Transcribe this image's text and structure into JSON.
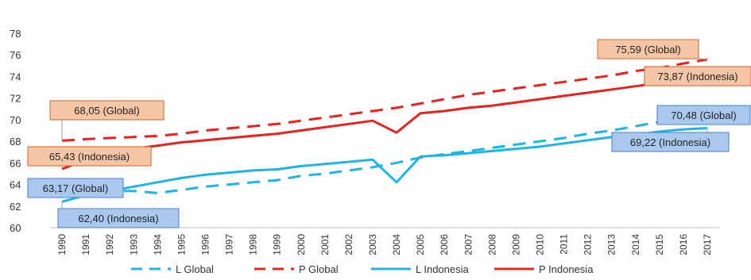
{
  "chart_data": {
    "type": "line",
    "title": "",
    "xlabel": "",
    "ylabel": "",
    "x": [
      1990,
      1991,
      1992,
      1993,
      1994,
      1995,
      1996,
      1997,
      1998,
      1999,
      2000,
      2001,
      2002,
      2003,
      2004,
      2005,
      2006,
      2007,
      2008,
      2009,
      2010,
      2011,
      2012,
      2013,
      2014,
      2015,
      2016,
      2017
    ],
    "ylim": [
      60,
      78
    ],
    "yticks": [
      60,
      62,
      64,
      66,
      68,
      70,
      72,
      74,
      76,
      78
    ],
    "grid": false,
    "legend_position": "bottom",
    "series": [
      {
        "name": "L Global",
        "color": "#1fb4e6",
        "dash": "dashed",
        "values": [
          63.17,
          63.3,
          63.4,
          63.4,
          63.2,
          63.5,
          63.8,
          64.0,
          64.2,
          64.4,
          64.8,
          65.0,
          65.3,
          65.6,
          66.0,
          66.5,
          66.8,
          67.1,
          67.4,
          67.7,
          68.0,
          68.3,
          68.7,
          69.0,
          69.4,
          69.8,
          70.1,
          70.48
        ]
      },
      {
        "name": "P Global",
        "color": "#e52421",
        "dash": "dashed",
        "values": [
          68.05,
          68.2,
          68.3,
          68.4,
          68.5,
          68.7,
          69.0,
          69.2,
          69.4,
          69.6,
          69.9,
          70.2,
          70.5,
          70.8,
          71.1,
          71.5,
          71.9,
          72.3,
          72.6,
          72.9,
          73.2,
          73.5,
          73.8,
          74.1,
          74.5,
          74.8,
          75.2,
          75.59
        ]
      },
      {
        "name": "L Indonesia",
        "color": "#1fb4e6",
        "dash": "solid",
        "values": [
          62.4,
          63.0,
          63.4,
          63.8,
          64.2,
          64.6,
          64.9,
          65.1,
          65.3,
          65.4,
          65.7,
          65.9,
          66.1,
          66.3,
          64.2,
          66.6,
          66.7,
          66.9,
          67.1,
          67.3,
          67.5,
          67.8,
          68.1,
          68.4,
          68.6,
          68.9,
          69.1,
          69.22
        ]
      },
      {
        "name": "P Indonesia",
        "color": "#e52421",
        "dash": "solid",
        "values": [
          65.43,
          66.3,
          66.9,
          67.3,
          67.6,
          67.9,
          68.1,
          68.3,
          68.5,
          68.7,
          69.0,
          69.3,
          69.6,
          69.9,
          68.8,
          70.6,
          70.8,
          71.1,
          71.3,
          71.6,
          71.9,
          72.2,
          72.5,
          72.8,
          73.1,
          73.4,
          73.7,
          73.87
        ]
      }
    ],
    "annotations": [
      {
        "text": "68,05 (Global)",
        "series": 1,
        "point": 0,
        "fill": "#f7c6a6",
        "border": "#d9622b"
      },
      {
        "text": "65,43 (Indonesia)",
        "series": 3,
        "point": 0,
        "fill": "#f7c6a6",
        "border": "#d9622b"
      },
      {
        "text": "63,17 (Global)",
        "series": 0,
        "point": 0,
        "fill": "#a9c8ee",
        "border": "#4a7fc4"
      },
      {
        "text": "62,40 (Indonesia)",
        "series": 2,
        "point": 0,
        "fill": "#a9c8ee",
        "border": "#4a7fc4"
      },
      {
        "text": "75,59 (Global)",
        "series": 1,
        "point": 27,
        "fill": "#f7c6a6",
        "border": "#d9622b"
      },
      {
        "text": "73,87 (Indonesia)",
        "series": 3,
        "point": 27,
        "fill": "#f7c6a6",
        "border": "#d9622b"
      },
      {
        "text": "70,48 (Global)",
        "series": 0,
        "point": 27,
        "fill": "#a9c8ee",
        "border": "#4a7fc4"
      },
      {
        "text": "69,22 (Indonesia)",
        "series": 2,
        "point": 27,
        "fill": "#a9c8ee",
        "border": "#4a7fc4"
      }
    ]
  }
}
